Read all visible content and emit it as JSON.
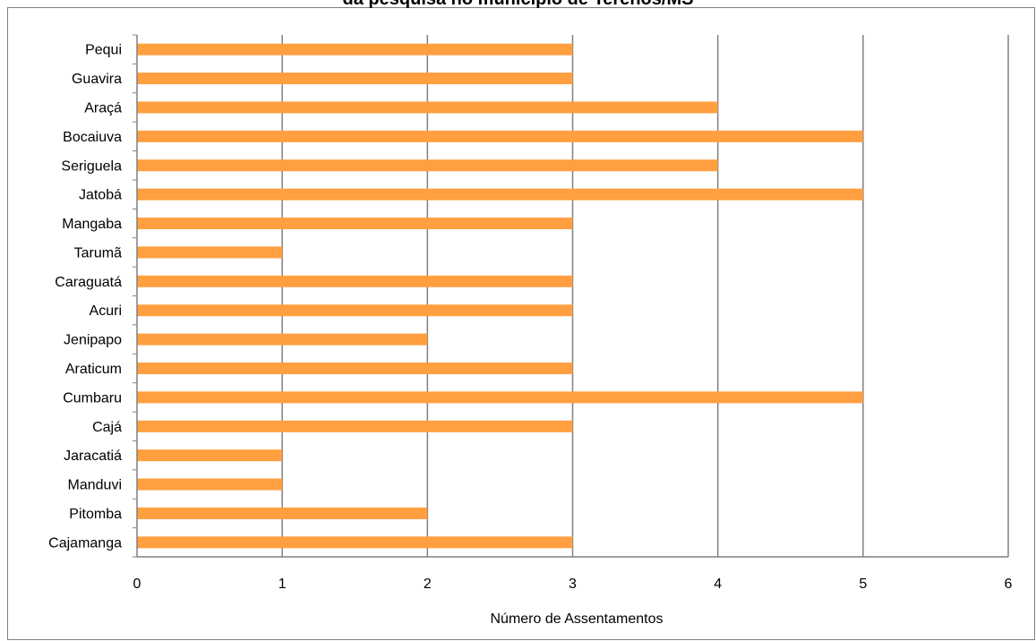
{
  "chart_data": {
    "type": "bar",
    "orientation": "horizontal",
    "title": "da pesquisa no município de Terenos/MS",
    "xlabel": "Número de Assentamentos",
    "ylabel": "",
    "categories": [
      "Pequi",
      "Guavira",
      "Araçá",
      "Bocaiuva",
      "Seriguela",
      "Jatobá",
      "Mangaba",
      "Tarumã",
      "Caraguatá",
      "Acuri",
      "Jenipapo",
      "Araticum",
      "Cumbaru",
      "Cajá",
      "Jaracatiá",
      "Manduvi",
      "Pitomba",
      "Cajamanga"
    ],
    "values": [
      3,
      3,
      4,
      5,
      4,
      5,
      3,
      1,
      3,
      3,
      2,
      3,
      5,
      3,
      1,
      1,
      2,
      3
    ],
    "xlim": [
      0,
      6
    ],
    "xticks": [
      "0",
      "1",
      "2",
      "3",
      "4",
      "5",
      "6"
    ],
    "grid": "vertical",
    "legend": "none",
    "colors": {
      "bar": "#FF9F3F",
      "grid": "#808080",
      "axis": "#808080",
      "frame": "#808080"
    }
  }
}
